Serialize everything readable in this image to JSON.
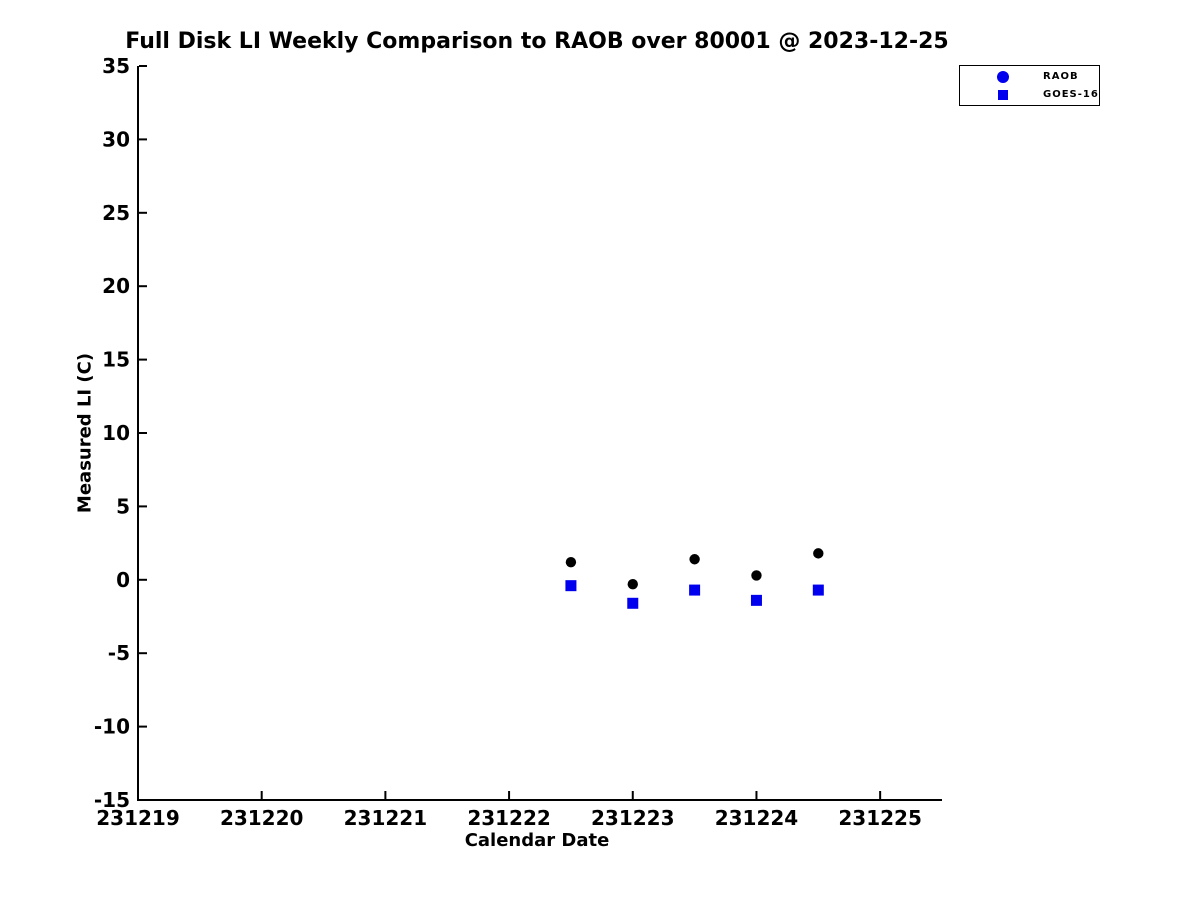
{
  "chart_data": {
    "type": "scatter",
    "title": "Full Disk LI Weekly Comparison to RAOB over 80001 @ 2023-12-25",
    "xlabel": "Calendar Date",
    "ylabel": "Measured LI (C)",
    "xlim": [
      231219,
      231225.5
    ],
    "ylim": [
      -15,
      35
    ],
    "xticks": [
      231219,
      231220,
      231221,
      231222,
      231223,
      231224,
      231225
    ],
    "yticks": [
      35,
      30,
      25,
      20,
      15,
      10,
      5,
      0,
      -5,
      -10,
      -15
    ],
    "grid": false,
    "axis_color": "#000000",
    "background_color": "#ffffff",
    "legend": {
      "position": "top-right",
      "entries": [
        {
          "label": "RAOB",
          "marker": "circle",
          "color": "#0000ee"
        },
        {
          "label": "GOES-16",
          "marker": "square",
          "color": "#0000ee"
        }
      ]
    },
    "series": [
      {
        "name": "RAOB",
        "marker": "circle",
        "color": "#000000",
        "x": [
          231222.5,
          231223,
          231223.5,
          231224,
          231224.5
        ],
        "y": [
          1.2,
          -0.3,
          1.4,
          0.3,
          1.8
        ]
      },
      {
        "name": "GOES-16",
        "marker": "square",
        "color": "#0000ee",
        "x": [
          231222.5,
          231223,
          231223.5,
          231224,
          231224.5
        ],
        "y": [
          -0.4,
          -1.6,
          -0.7,
          -1.4,
          -0.7
        ]
      }
    ]
  }
}
